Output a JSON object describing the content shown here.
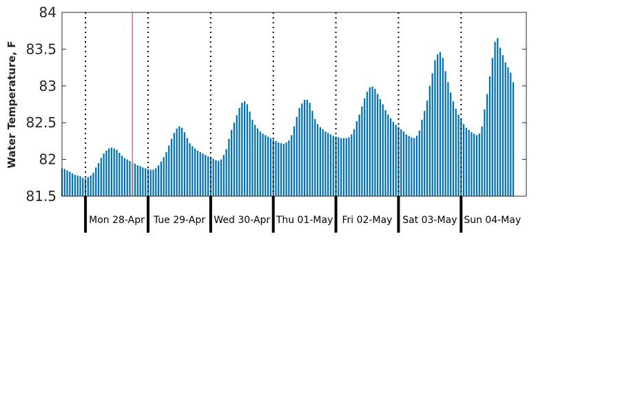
{
  "chart_data": {
    "type": "bar",
    "ylabel": "Water Temperature, F",
    "xlabel": "",
    "title": "",
    "ylim": [
      81.5,
      84
    ],
    "y_ticks": [
      "81.5",
      "82",
      "82.5",
      "83",
      "83.5",
      "84"
    ],
    "day_labels": [
      "Mon 28-Apr",
      "Tue 29-Apr",
      "Wed 30-Apr",
      "Thu 01-May",
      "Fri 02-May",
      "Sat 03-May",
      "Sun 04-May"
    ],
    "x_start": "2014-04-27 15:00",
    "x_end": "2014-05-05 01:00",
    "interval_hours": 1,
    "values": [
      81.88,
      81.87,
      81.85,
      81.83,
      81.81,
      81.79,
      81.78,
      81.77,
      81.75,
      81.74,
      81.76,
      81.78,
      81.82,
      81.89,
      81.95,
      82.02,
      82.08,
      82.12,
      82.15,
      82.16,
      82.15,
      82.13,
      82.09,
      82.05,
      82.02,
      82.0,
      81.98,
      81.96,
      81.94,
      81.92,
      81.91,
      81.89,
      81.88,
      81.87,
      81.86,
      81.86,
      81.88,
      81.92,
      81.97,
      82.03,
      82.1,
      82.19,
      82.28,
      82.36,
      82.42,
      82.45,
      82.43,
      82.37,
      82.29,
      82.22,
      82.18,
      82.15,
      82.12,
      82.1,
      82.08,
      82.06,
      82.04,
      82.02,
      82.01,
      81.99,
      81.98,
      82.0,
      82.06,
      82.14,
      82.28,
      82.4,
      82.5,
      82.6,
      82.7,
      82.77,
      82.79,
      82.75,
      82.65,
      82.54,
      82.47,
      82.42,
      82.38,
      82.35,
      82.33,
      82.31,
      82.29,
      82.27,
      82.25,
      82.23,
      82.22,
      82.21,
      82.23,
      82.26,
      82.33,
      82.45,
      82.58,
      82.7,
      82.76,
      82.81,
      82.81,
      82.77,
      82.66,
      82.55,
      82.48,
      82.44,
      82.41,
      82.38,
      82.36,
      82.34,
      82.32,
      82.31,
      82.3,
      82.29,
      82.29,
      82.29,
      82.3,
      82.34,
      82.41,
      82.52,
      82.61,
      82.72,
      82.83,
      82.92,
      82.98,
      82.99,
      82.96,
      82.89,
      82.82,
      82.75,
      82.67,
      82.61,
      82.56,
      82.51,
      82.47,
      82.44,
      82.41,
      82.38,
      82.34,
      82.32,
      82.3,
      82.29,
      82.32,
      82.39,
      82.54,
      82.66,
      82.8,
      83.0,
      83.17,
      83.35,
      83.43,
      83.46,
      83.38,
      83.2,
      83.05,
      82.91,
      82.79,
      82.69,
      82.61,
      82.54,
      82.48,
      82.43,
      82.4,
      82.37,
      82.35,
      82.33,
      82.35,
      82.45,
      82.68,
      82.89,
      83.13,
      83.38,
      83.6,
      83.65,
      83.52,
      83.42,
      83.32,
      83.25,
      83.18,
      83.05
    ],
    "day_boundaries": [
      "2014-04-28 00:00",
      "2014-04-29 00:00",
      "2014-04-30 00:00",
      "2014-05-01 00:00",
      "2014-05-02 00:00",
      "2014-05-03 00:00",
      "2014-05-04 00:00"
    ],
    "marker_time": "2014-04-28 18:00",
    "bar_color": "#0072B2",
    "marker_color": "#E8707A",
    "grid": false
  }
}
